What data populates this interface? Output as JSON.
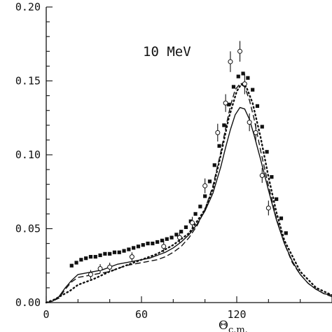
{
  "chart_data": {
    "type": "line",
    "title": "",
    "annotation": "10 MeV",
    "xlabel": "Θc.m.",
    "xlabel_main": "Θ",
    "xlabel_sub": "c.m.",
    "ylabel": "",
    "xlim": [
      0,
      180
    ],
    "ylim": [
      0,
      0.2
    ],
    "x_ticks": [
      0,
      60,
      120
    ],
    "x_tick_labels": [
      "0",
      "60",
      "120"
    ],
    "y_ticks": [
      0,
      0.05,
      0.1,
      0.15,
      0.2
    ],
    "y_tick_labels": [
      "0.00",
      "0.05",
      "0.10",
      "0.15",
      "0.20"
    ],
    "grid": false,
    "legend": "none",
    "series": [
      {
        "style": "solid",
        "color": "#111111",
        "x": [
          0,
          4,
          8,
          12,
          16,
          20,
          25,
          30,
          35,
          40,
          45,
          50,
          55,
          60,
          65,
          70,
          75,
          80,
          85,
          90,
          95,
          100,
          105,
          110,
          113,
          116,
          119,
          122,
          125,
          128,
          131,
          135,
          140,
          145,
          150,
          155,
          160,
          165,
          170,
          175,
          180
        ],
        "y": [
          0,
          0.001,
          0.004,
          0.01,
          0.015,
          0.019,
          0.02,
          0.021,
          0.022,
          0.024,
          0.026,
          0.027,
          0.028,
          0.029,
          0.03,
          0.032,
          0.034,
          0.037,
          0.041,
          0.046,
          0.053,
          0.062,
          0.074,
          0.092,
          0.105,
          0.117,
          0.127,
          0.132,
          0.131,
          0.124,
          0.113,
          0.097,
          0.076,
          0.056,
          0.04,
          0.028,
          0.019,
          0.013,
          0.009,
          0.006,
          0.005
        ]
      },
      {
        "style": "dashed",
        "color": "#111111",
        "x": [
          0,
          4,
          8,
          12,
          16,
          20,
          25,
          30,
          35,
          40,
          45,
          50,
          55,
          60,
          65,
          70,
          75,
          80,
          85,
          90,
          95,
          100,
          105,
          110,
          113,
          116,
          119,
          122,
          125,
          128,
          131,
          135,
          140,
          145,
          150,
          155,
          160,
          165,
          170,
          175,
          180
        ],
        "y": [
          0,
          0.001,
          0.003,
          0.009,
          0.014,
          0.017,
          0.018,
          0.019,
          0.02,
          0.021,
          0.023,
          0.025,
          0.026,
          0.027,
          0.028,
          0.029,
          0.031,
          0.034,
          0.038,
          0.044,
          0.052,
          0.063,
          0.079,
          0.102,
          0.118,
          0.133,
          0.144,
          0.148,
          0.146,
          0.137,
          0.124,
          0.103,
          0.079,
          0.057,
          0.04,
          0.027,
          0.019,
          0.013,
          0.009,
          0.006,
          0.004
        ]
      },
      {
        "style": "dotted",
        "color": "#111111",
        "x": [
          0,
          5,
          10,
          15,
          20,
          30,
          40,
          50,
          60,
          70,
          80,
          90,
          100,
          105,
          110,
          115,
          120,
          123,
          126,
          130,
          135,
          140,
          145,
          150,
          160,
          170,
          180
        ],
        "y": [
          0,
          0.002,
          0.005,
          0.008,
          0.012,
          0.016,
          0.021,
          0.025,
          0.029,
          0.033,
          0.039,
          0.047,
          0.063,
          0.077,
          0.1,
          0.125,
          0.143,
          0.148,
          0.146,
          0.135,
          0.112,
          0.085,
          0.061,
          0.042,
          0.021,
          0.01,
          0.005
        ]
      },
      {
        "style": "squares",
        "color": "#111111",
        "x": [
          16,
          19,
          22,
          25,
          28,
          31,
          34,
          37,
          40,
          43,
          46,
          49,
          52,
          55,
          58,
          61,
          64,
          67,
          70,
          73,
          76,
          79,
          82,
          85,
          88,
          91,
          94,
          97,
          100,
          103,
          106,
          109,
          112,
          115,
          118,
          121,
          124,
          127,
          130,
          133,
          136,
          139,
          142,
          145,
          148,
          151
        ],
        "y": [
          0.025,
          0.027,
          0.029,
          0.03,
          0.031,
          0.031,
          0.032,
          0.033,
          0.033,
          0.034,
          0.034,
          0.035,
          0.036,
          0.037,
          0.038,
          0.039,
          0.04,
          0.04,
          0.041,
          0.042,
          0.043,
          0.044,
          0.046,
          0.048,
          0.051,
          0.055,
          0.06,
          0.065,
          0.072,
          0.082,
          0.093,
          0.106,
          0.12,
          0.134,
          0.146,
          0.153,
          0.155,
          0.152,
          0.144,
          0.133,
          0.119,
          0.102,
          0.085,
          0.07,
          0.057,
          0.047
        ]
      },
      {
        "style": "open-circles-errorbars",
        "color": "#111111",
        "x": [
          28,
          34,
          40,
          54,
          74,
          84,
          92,
          100,
          108,
          113,
          116,
          122,
          125,
          128,
          132,
          136,
          140
        ],
        "y": [
          0.019,
          0.023,
          0.024,
          0.031,
          0.038,
          0.044,
          0.054,
          0.079,
          0.115,
          0.135,
          0.163,
          0.17,
          0.148,
          0.122,
          0.115,
          0.086,
          0.064
        ],
        "err": [
          0.003,
          0.003,
          0.003,
          0.003,
          0.004,
          0.004,
          0.004,
          0.005,
          0.006,
          0.006,
          0.007,
          0.007,
          0.007,
          0.006,
          0.006,
          0.005,
          0.005
        ]
      }
    ]
  }
}
